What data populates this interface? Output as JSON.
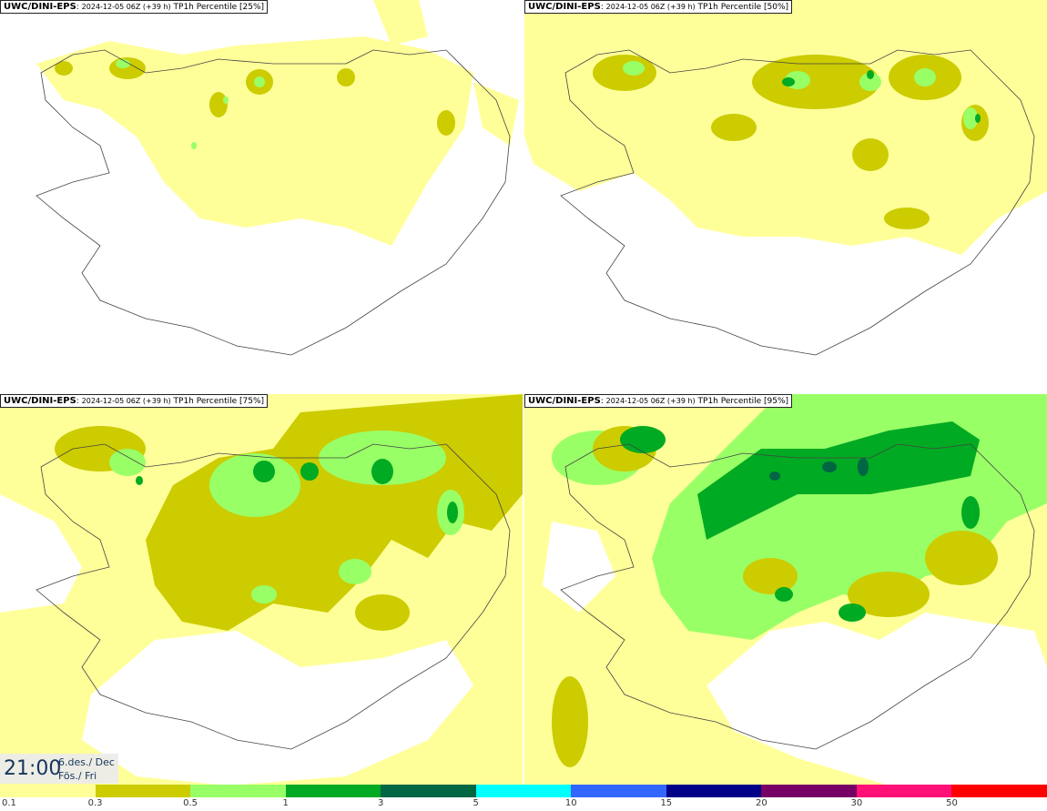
{
  "panels": [
    {
      "model": "UWC/DINI-EPS",
      "run": "2024-12-05 06Z (+39 h)",
      "field": "TP1h Percentile [25%]"
    },
    {
      "model": "UWC/DINI-EPS",
      "run": "2024-12-05 06Z (+39 h)",
      "field": "TP1h Percentile [50%]"
    },
    {
      "model": "UWC/DINI-EPS",
      "run": "2024-12-05 06Z (+39 h)",
      "field": "TP1h Percentile [75%]"
    },
    {
      "model": "UWC/DINI-EPS",
      "run": "2024-12-05 06Z (+39 h)",
      "field": "TP1h Percentile [95%]"
    }
  ],
  "valid_time": {
    "time": "21:00",
    "date_line1": "6.des./ Dec",
    "date_line2": "Fös./ Fri"
  },
  "legend": {
    "colors": [
      "#ffff99",
      "#cccc00",
      "#99ff66",
      "#00aa22",
      "#006644",
      "#00ffff",
      "#3366ff",
      "#000088",
      "#770066",
      "#ff1177",
      "#ff0000"
    ],
    "labels": [
      "0.1",
      "0.3",
      "0.5",
      "1",
      "3",
      "5",
      "10",
      "15",
      "20",
      "30",
      "50"
    ]
  }
}
